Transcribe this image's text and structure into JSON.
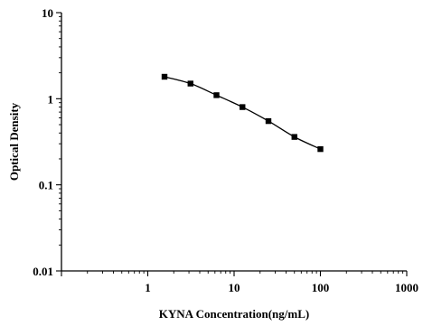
{
  "chart_data": {
    "type": "scatter",
    "title": "",
    "xlabel": "KYNA Concentration(ng/mL)",
    "ylabel": "Optical Density",
    "xscale": "log",
    "yscale": "log",
    "xlim": [
      0.1,
      1000
    ],
    "ylim": [
      0.01,
      10
    ],
    "grid": false,
    "legend": "none",
    "x_tick_labels": [
      "1",
      "10",
      "100",
      "1000"
    ],
    "y_tick_labels": [
      "0.01",
      "0.1",
      "1",
      "10"
    ],
    "series": [
      {
        "marker": "square",
        "fit_line": true,
        "x": [
          1.5625,
          3.125,
          6.25,
          12.5,
          25,
          50,
          100
        ],
        "y": [
          1.8,
          1.5,
          1.1,
          0.8,
          0.55,
          0.36,
          0.26
        ]
      }
    ]
  }
}
